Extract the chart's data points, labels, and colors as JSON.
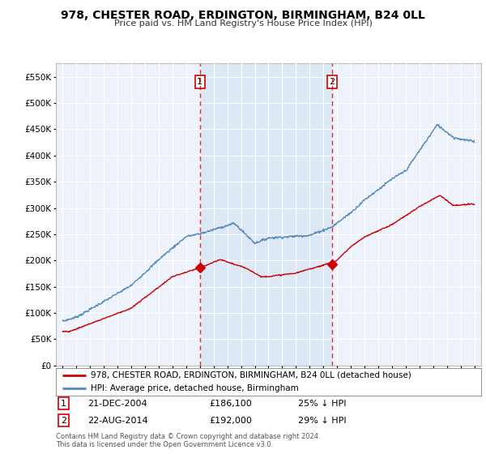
{
  "title": "978, CHESTER ROAD, ERDINGTON, BIRMINGHAM, B24 0LL",
  "subtitle": "Price paid vs. HM Land Registry's House Price Index (HPI)",
  "footer": "Contains HM Land Registry data © Crown copyright and database right 2024.\nThis data is licensed under the Open Government Licence v3.0.",
  "legend_property": "978, CHESTER ROAD, ERDINGTON, BIRMINGHAM, B24 0LL (detached house)",
  "legend_hpi": "HPI: Average price, detached house, Birmingham",
  "sale1_date": "21-DEC-2004",
  "sale1_price": 186100,
  "sale1_pct": "25% ↓ HPI",
  "sale2_date": "22-AUG-2014",
  "sale2_price": 192000,
  "sale2_pct": "29% ↓ HPI",
  "property_color": "#cc0000",
  "hpi_color": "#5588bb",
  "vline_color": "#cc0000",
  "background_color": "#ffffff",
  "plot_bg_color": "#eef2fa",
  "shade_color": "#dce8f5",
  "grid_color": "#ffffff",
  "ylim": [
    0,
    575000
  ],
  "yticks": [
    0,
    50000,
    100000,
    150000,
    200000,
    250000,
    300000,
    350000,
    400000,
    450000,
    500000,
    550000
  ],
  "sale1_year": 2005.0,
  "sale2_year": 2014.64,
  "sale1_marker_y": 186100,
  "sale2_marker_y": 192000,
  "xmin": 1994.5,
  "xmax": 2025.5
}
